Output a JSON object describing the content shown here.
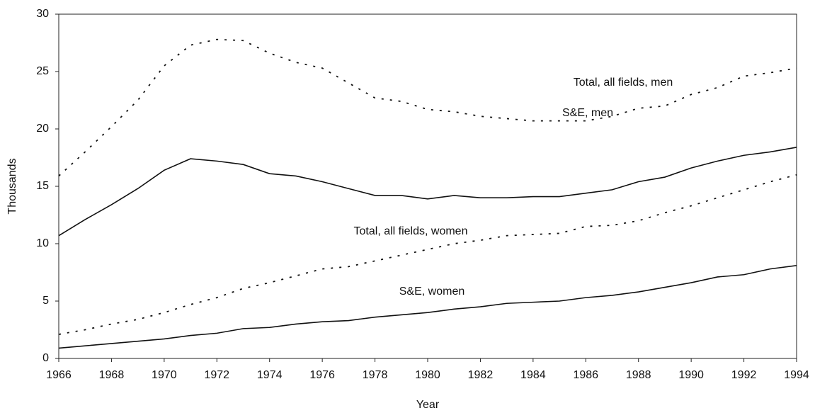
{
  "chart_data": {
    "type": "line",
    "x_label": "Year",
    "y_label": "Thousands",
    "x": [
      1966,
      1967,
      1968,
      1969,
      1970,
      1971,
      1972,
      1973,
      1974,
      1975,
      1976,
      1977,
      1978,
      1979,
      1980,
      1981,
      1982,
      1983,
      1984,
      1985,
      1986,
      1987,
      1988,
      1989,
      1990,
      1991,
      1992,
      1993,
      1994
    ],
    "series": [
      {
        "name": "Total, all fields, men",
        "color": "#111111",
        "style": "dashed",
        "values": [
          15.9,
          18.0,
          20.2,
          22.5,
          25.5,
          27.3,
          27.8,
          27.7,
          26.6,
          25.8,
          25.3,
          24.0,
          22.7,
          22.4,
          21.7,
          21.5,
          21.1,
          20.9,
          20.7,
          20.7,
          20.7,
          21.1,
          21.8,
          22.0,
          23.0,
          23.6,
          24.6,
          24.9,
          25.3
        ]
      },
      {
        "name": "S&E, men",
        "color": "#111111",
        "style": "solid",
        "values": [
          10.7,
          12.1,
          13.4,
          14.8,
          16.4,
          17.4,
          17.2,
          16.9,
          16.1,
          15.9,
          15.4,
          14.8,
          14.2,
          14.2,
          13.9,
          14.2,
          14.0,
          14.0,
          14.1,
          14.1,
          14.4,
          14.7,
          15.4,
          15.8,
          16.6,
          17.2,
          17.7,
          18.0,
          18.4
        ]
      },
      {
        "name": "Total, all fields, women",
        "color": "#111111",
        "style": "dashed",
        "values": [
          2.1,
          2.5,
          3.0,
          3.4,
          4.0,
          4.7,
          5.3,
          6.1,
          6.6,
          7.2,
          7.8,
          8.0,
          8.5,
          9.0,
          9.5,
          10.0,
          10.3,
          10.7,
          10.8,
          10.9,
          11.5,
          11.6,
          12.0,
          12.7,
          13.3,
          14.0,
          14.7,
          15.4,
          16.0
        ]
      },
      {
        "name": "S&E, women",
        "color": "#111111",
        "style": "solid",
        "values": [
          0.9,
          1.1,
          1.3,
          1.5,
          1.7,
          2.0,
          2.2,
          2.6,
          2.7,
          3.0,
          3.2,
          3.3,
          3.6,
          3.8,
          4.0,
          4.3,
          4.5,
          4.8,
          4.9,
          5.0,
          5.3,
          5.5,
          5.8,
          6.2,
          6.6,
          7.1,
          7.3,
          7.8,
          8.1
        ]
      }
    ],
    "xlim": [
      1966,
      1994
    ],
    "xticks": [
      1966,
      1968,
      1970,
      1972,
      1974,
      1976,
      1978,
      1980,
      1982,
      1984,
      1986,
      1988,
      1990,
      1992,
      1994
    ],
    "ylim": [
      0,
      30
    ],
    "yticks": [
      0,
      5,
      10,
      15,
      20,
      25,
      30
    ],
    "grid": false
  }
}
